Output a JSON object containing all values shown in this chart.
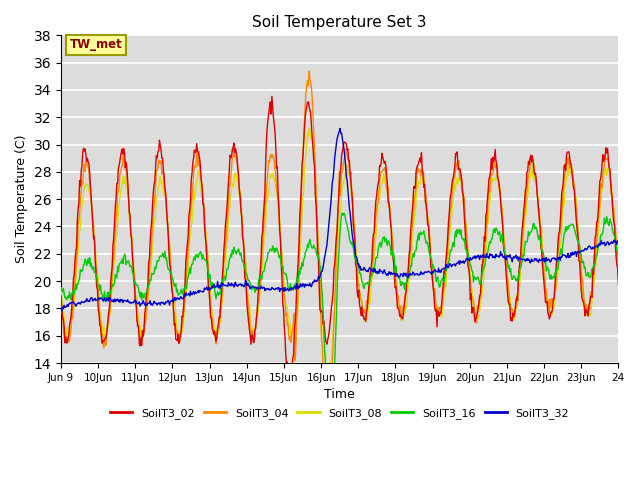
{
  "title": "Soil Temperature Set 3",
  "xlabel": "Time",
  "ylabel": "Soil Temperature (C)",
  "ylim": [
    14,
    38
  ],
  "yticks": [
    14,
    16,
    18,
    20,
    22,
    24,
    26,
    28,
    30,
    32,
    34,
    36,
    38
  ],
  "annotation_text": "TW_met",
  "annotation_color": "#8B0000",
  "annotation_bg": "#FFFF99",
  "annotation_border": "#999900",
  "series_colors": {
    "SoilT3_02": "#DD0000",
    "SoilT3_04": "#FF8800",
    "SoilT3_08": "#DDDD00",
    "SoilT3_16": "#00CC00",
    "SoilT3_32": "#0000CC"
  },
  "bg_color": "#DCDCDC",
  "plot_bg": "#DCDCDC",
  "line_width": 1.0,
  "xtick_start_day": 9,
  "xtick_end_day": 24,
  "x_start": 9,
  "x_end": 24
}
